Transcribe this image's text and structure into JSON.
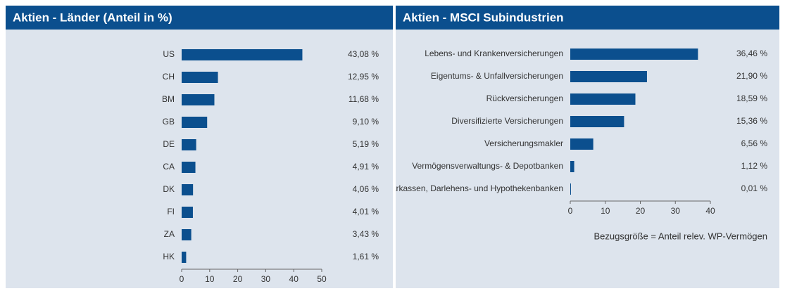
{
  "chart_data": [
    {
      "type": "bar",
      "title": "Aktien - Länder (Anteil in %)",
      "categories": [
        "US",
        "CH",
        "BM",
        "GB",
        "DE",
        "CA",
        "DK",
        "FI",
        "ZA",
        "HK"
      ],
      "values": [
        43.08,
        12.95,
        11.68,
        9.1,
        5.19,
        4.91,
        4.06,
        4.01,
        3.43,
        1.61
      ],
      "value_labels": [
        "43,08 %",
        "12,95 %",
        "11,68 %",
        "9,10 %",
        "5,19 %",
        "4,91 %",
        "4,06 %",
        "4,01 %",
        "3,43 %",
        "1,61 %"
      ],
      "xlim": [
        0,
        50
      ],
      "xticks": [
        0,
        10,
        20,
        30,
        40,
        50
      ],
      "color": "#0b4f8e"
    },
    {
      "type": "bar",
      "title": "Aktien - MSCI Subindustrien",
      "categories": [
        "Lebens- und Krankenversicherungen",
        "Eigentums- & Unfallversicherungen",
        "Rückversicherungen",
        "Diversifizierte Versicherungen",
        "Versicherungsmakler",
        "Vermögensverwaltungs- & Depotbanken",
        "Sparkassen, Darlehens- und Hypothekenbanken"
      ],
      "values": [
        36.46,
        21.9,
        18.59,
        15.36,
        6.56,
        1.12,
        0.01
      ],
      "value_labels": [
        "36,46 %",
        "21,90 %",
        "18,59 %",
        "15,36 %",
        "6,56 %",
        "1,12 %",
        "0,01 %"
      ],
      "xlim": [
        0,
        40
      ],
      "xticks": [
        0,
        10,
        20,
        30,
        40
      ],
      "color": "#0b4f8e",
      "note": "Bezugsgröße = Anteil relev. WP-Vermögen"
    }
  ]
}
